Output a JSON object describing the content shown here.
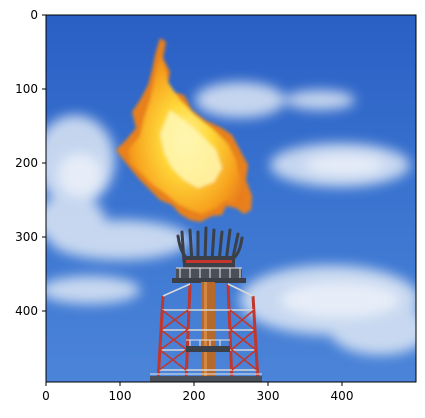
{
  "image": {
    "subject": "gas-flare-stack",
    "colors": {
      "sky_top": "#2f66c8",
      "sky_bottom": "#4f86d6",
      "flame_outer": "#f08a1c",
      "flame_core": "#ffe54a",
      "tower_red": "#c2362b",
      "tower_white": "#e6e6e6",
      "tower_dark": "#3a3f48"
    }
  },
  "axes": {
    "x_ticks": [
      "0",
      "100",
      "200",
      "300",
      "400"
    ],
    "y_ticks": [
      "0",
      "100",
      "200",
      "300",
      "400"
    ],
    "x_range": [
      0,
      500
    ],
    "y_range": [
      0,
      500
    ],
    "y_inverted": true
  }
}
